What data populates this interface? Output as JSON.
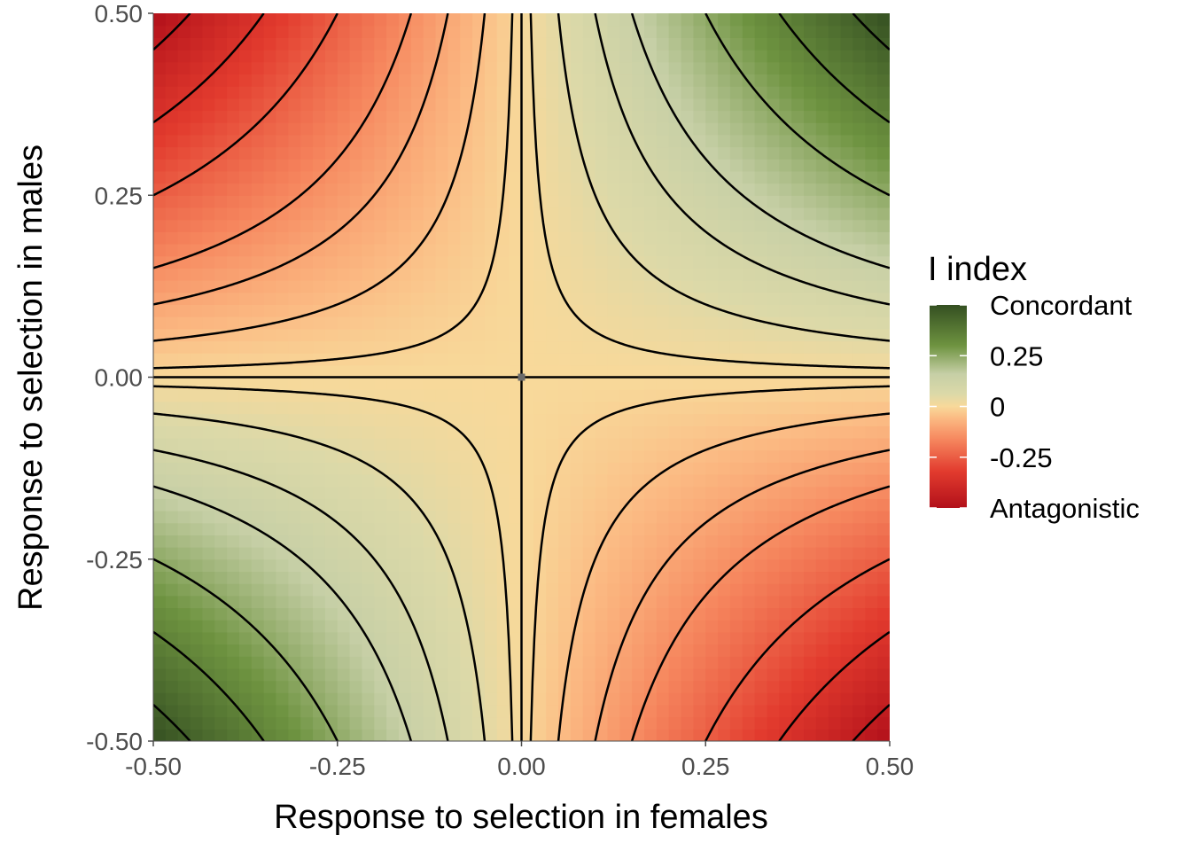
{
  "chart_data": {
    "type": "heatmap",
    "title": "",
    "xlabel": "Response to selection in females",
    "ylabel": "Response to selection in males",
    "xlim": [
      -0.5,
      0.5
    ],
    "ylim": [
      -0.5,
      0.5
    ],
    "x_ticks": [
      -0.5,
      -0.25,
      0,
      0.25,
      0.5
    ],
    "y_ticks": [
      -0.5,
      -0.25,
      0,
      0.25,
      0.5
    ],
    "x_tick_labels": [
      "-0.50",
      "-0.25",
      "0.00",
      "0.25",
      "0.50"
    ],
    "y_tick_labels": [
      "-0.50",
      "-0.25",
      "0.00",
      "0.25",
      "0.50"
    ],
    "fill_function": "I = x * y * 2 (sign: concordant when positive, antagonistic when negative)",
    "fill_range": [
      -0.5,
      0.5
    ],
    "contour_levels": [
      -0.45,
      -0.35,
      -0.25,
      -0.15,
      -0.1,
      -0.05,
      -0.0125,
      0,
      0.0125,
      0.05,
      0.1,
      0.15,
      0.25,
      0.35,
      0.45
    ],
    "center_point": {
      "x": 0,
      "y": 0
    },
    "grid": false,
    "legend": {
      "title": "I index",
      "position": "right",
      "labels": [
        "Concordant",
        "0.25",
        "0",
        "-0.25",
        "Antagonistic"
      ],
      "label_values": [
        0.5,
        0.25,
        0,
        -0.25,
        -0.5
      ]
    },
    "color_scale": [
      {
        "value": -0.5,
        "color": "#b2101a"
      },
      {
        "value": -0.32,
        "color": "#e23b2e"
      },
      {
        "value": -0.16,
        "color": "#f6885f"
      },
      {
        "value": -0.06,
        "color": "#fbb982"
      },
      {
        "value": 0,
        "color": "#f8d99a"
      },
      {
        "value": 0.06,
        "color": "#dcd9a8"
      },
      {
        "value": 0.16,
        "color": "#c6cfa6"
      },
      {
        "value": 0.3,
        "color": "#6e9340"
      },
      {
        "value": 0.5,
        "color": "#344f21"
      }
    ],
    "colors": {
      "contour": "#000000",
      "axis_line": "#4d4d4d",
      "center_marker": "#6b6b6b"
    }
  }
}
